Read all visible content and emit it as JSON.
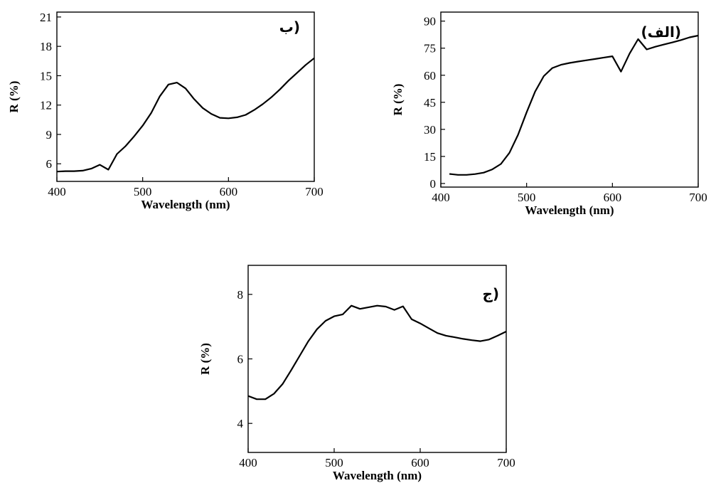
{
  "chart_data": [
    {
      "type": "line",
      "title": "",
      "panel_label": "(ب",
      "xlabel": "Wavelength (nm)",
      "ylabel": "R (%)",
      "xlim": [
        400,
        700
      ],
      "ylim": [
        4.2,
        21.5
      ],
      "xticks": [
        400,
        500,
        600,
        700
      ],
      "yticks": [
        6,
        9,
        12,
        15,
        18,
        21
      ],
      "grid": false,
      "series": [
        {
          "x": [
            400,
            410,
            420,
            430,
            440,
            450,
            460,
            470,
            480,
            490,
            500,
            510,
            520,
            530,
            540,
            550,
            560,
            570,
            580,
            590,
            600,
            610,
            620,
            630,
            640,
            650,
            660,
            670,
            680,
            690,
            700
          ],
          "y": [
            5.2,
            5.25,
            5.25,
            5.3,
            5.5,
            5.9,
            5.4,
            7.0,
            7.8,
            8.8,
            9.9,
            11.2,
            12.9,
            14.1,
            14.3,
            13.7,
            12.6,
            11.7,
            11.1,
            10.7,
            10.65,
            10.75,
            11.0,
            11.5,
            12.1,
            12.8,
            13.6,
            14.5,
            15.3,
            16.1,
            16.8
          ]
        }
      ]
    },
    {
      "type": "line",
      "title": "",
      "panel_label": "(الف)",
      "xlabel": "Wavelength (nm)",
      "ylabel": "R (%)",
      "xlim": [
        400,
        700
      ],
      "ylim": [
        -2,
        95
      ],
      "xticks": [
        400,
        500,
        600,
        700
      ],
      "yticks": [
        0,
        15,
        30,
        45,
        60,
        75,
        90
      ],
      "grid": false,
      "series": [
        {
          "x": [
            410,
            420,
            430,
            440,
            450,
            460,
            470,
            480,
            490,
            500,
            510,
            520,
            530,
            540,
            550,
            560,
            570,
            580,
            590,
            600,
            610,
            620,
            630,
            640,
            650,
            660,
            670,
            680,
            690,
            700
          ],
          "y": [
            5.3,
            4.8,
            4.8,
            5.2,
            6.0,
            7.8,
            10.8,
            17.0,
            27.0,
            39.5,
            51.0,
            59.5,
            64.0,
            65.8,
            66.8,
            67.6,
            68.3,
            69.0,
            69.8,
            70.5,
            62.0,
            72.0,
            80.0,
            74.3,
            75.8,
            77.0,
            78.2,
            79.5,
            81.0,
            82.0
          ]
        }
      ]
    },
    {
      "type": "line",
      "title": "",
      "panel_label": "(ج",
      "xlabel": "Wavelength (nm)",
      "ylabel": "R (%)",
      "xlim": [
        400,
        700
      ],
      "ylim": [
        3.1,
        8.9
      ],
      "xticks": [
        400,
        500,
        600,
        700
      ],
      "yticks": [
        4,
        6,
        8
      ],
      "grid": false,
      "series": [
        {
          "x": [
            400,
            410,
            420,
            430,
            440,
            450,
            460,
            470,
            480,
            490,
            500,
            510,
            520,
            530,
            540,
            550,
            560,
            570,
            580,
            590,
            600,
            610,
            620,
            630,
            640,
            650,
            660,
            670,
            680,
            690,
            700
          ],
          "y": [
            4.85,
            4.75,
            4.75,
            4.92,
            5.22,
            5.65,
            6.1,
            6.55,
            6.92,
            7.18,
            7.32,
            7.38,
            7.65,
            7.55,
            7.6,
            7.65,
            7.62,
            7.52,
            7.63,
            7.23,
            7.1,
            6.95,
            6.8,
            6.72,
            6.67,
            6.62,
            6.58,
            6.55,
            6.6,
            6.72,
            6.85
          ]
        }
      ]
    }
  ]
}
